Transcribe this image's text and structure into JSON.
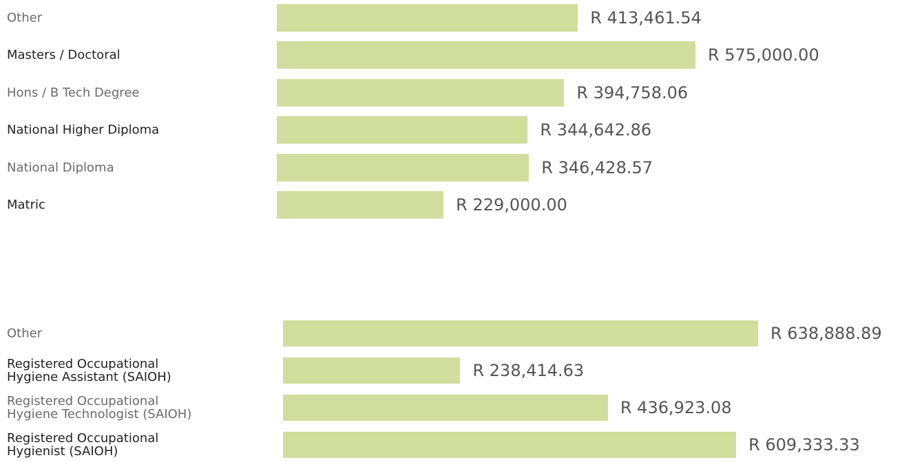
{
  "chart_data": [
    {
      "type": "bar",
      "orientation": "horizontal",
      "color": "#d1dd9c",
      "categories": [
        "Other",
        "Masters / Doctoral",
        "Hons / B Tech Degree",
        "National Higher Diploma",
        "National Diploma",
        "Matric"
      ],
      "values": [
        413461.54,
        575000.0,
        394758.06,
        344642.86,
        346428.57,
        229000.0
      ],
      "value_labels": [
        "R 413,461.54",
        "R 575,000.00",
        "R 394,758.06",
        "R 344,642.86",
        "R 346,428.57",
        "R 229,000.00"
      ]
    },
    {
      "type": "bar",
      "orientation": "horizontal",
      "color": "#d1dd9c",
      "categories": [
        "Other",
        "Registered Occupational Hygiene Assistant (SAIOH)",
        "Registered Occupational Hygiene Technologist (SAIOH)",
        "Registered Occupational Hygienist (SAIOH)"
      ],
      "values": [
        638888.89,
        238414.63,
        436923.08,
        609333.33
      ],
      "value_labels": [
        "R 638,888.89",
        "R 238,414.63",
        "R 436,923.08",
        "R 609,333.33"
      ]
    }
  ]
}
